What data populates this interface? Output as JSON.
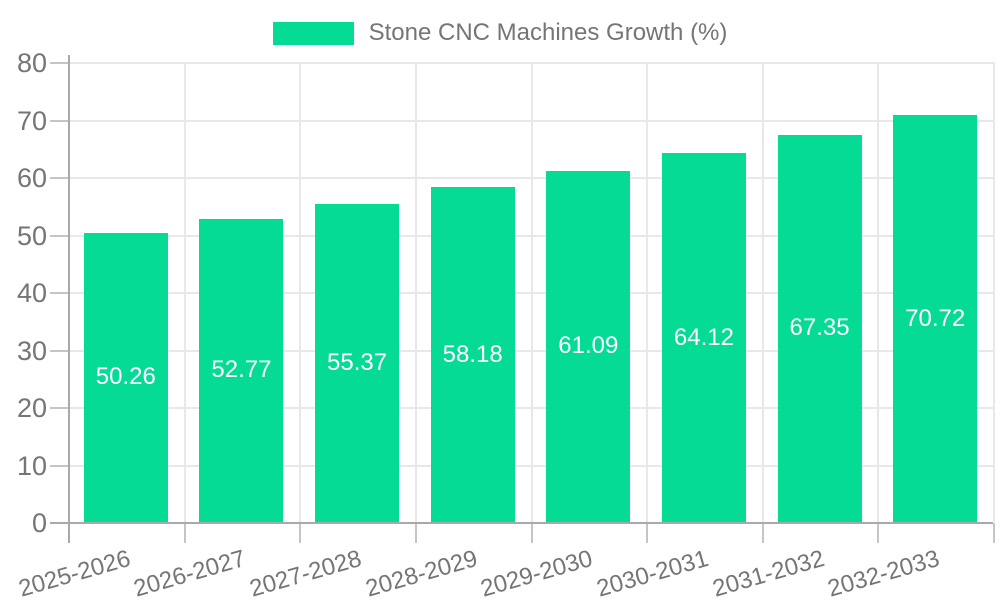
{
  "chart_data": {
    "type": "bar",
    "title": "Stone CNC Machines Growth (%)",
    "categories": [
      "2025-2026",
      "2026-2027",
      "2027-2028",
      "2028-2029",
      "2029-2030",
      "2030-2031",
      "2031-2032",
      "2032-2033"
    ],
    "values": [
      50.26,
      52.77,
      55.37,
      58.18,
      61.09,
      64.12,
      67.35,
      70.72
    ],
    "yticks": [
      0,
      10,
      20,
      30,
      40,
      50,
      60,
      70,
      80
    ],
    "ylim": [
      0,
      80
    ],
    "xlabel": "",
    "ylabel": "",
    "legend_position": "top",
    "grid": true,
    "x_label_rotation_deg": -16,
    "colors": {
      "bar": "#05DB95",
      "bar_label": "#ffffff",
      "axis_text": "#757575",
      "grid_line": "#e8e8e8",
      "axis_line": "#a9a9a9",
      "tick_line": "#c5c5c5",
      "background": "#ffffff"
    }
  }
}
